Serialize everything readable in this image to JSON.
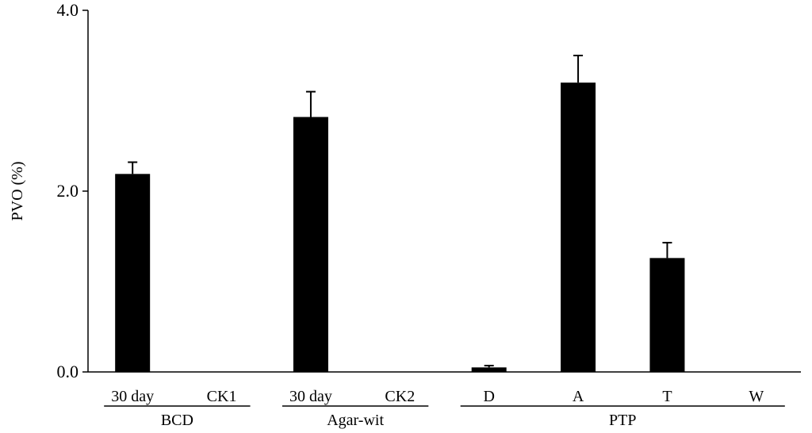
{
  "chart_data": {
    "type": "bar",
    "title": "",
    "xlabel": "",
    "ylabel": "PVO (%)",
    "ylim": [
      0,
      4.0
    ],
    "yticks": [
      "0.0",
      "2.0",
      "4.0"
    ],
    "ytick_values": [
      0,
      2,
      4
    ],
    "grid": false,
    "legend": "none",
    "bar_color": "#000000",
    "categories": [
      "30 day",
      "CK1",
      "30 day",
      "CK2",
      "D",
      "A",
      "T",
      "W"
    ],
    "values": [
      2.19,
      0,
      2.82,
      0,
      0.05,
      3.2,
      1.26,
      0
    ],
    "errors": [
      0.13,
      0,
      0.28,
      0,
      0.02,
      0.3,
      0.17,
      0
    ],
    "groups": [
      {
        "name": "BCD",
        "members": [
          0,
          1
        ]
      },
      {
        "name": "Agar-wit",
        "members": [
          2,
          3
        ]
      },
      {
        "name": "PTP",
        "members": [
          4,
          5,
          6,
          7
        ]
      }
    ]
  }
}
